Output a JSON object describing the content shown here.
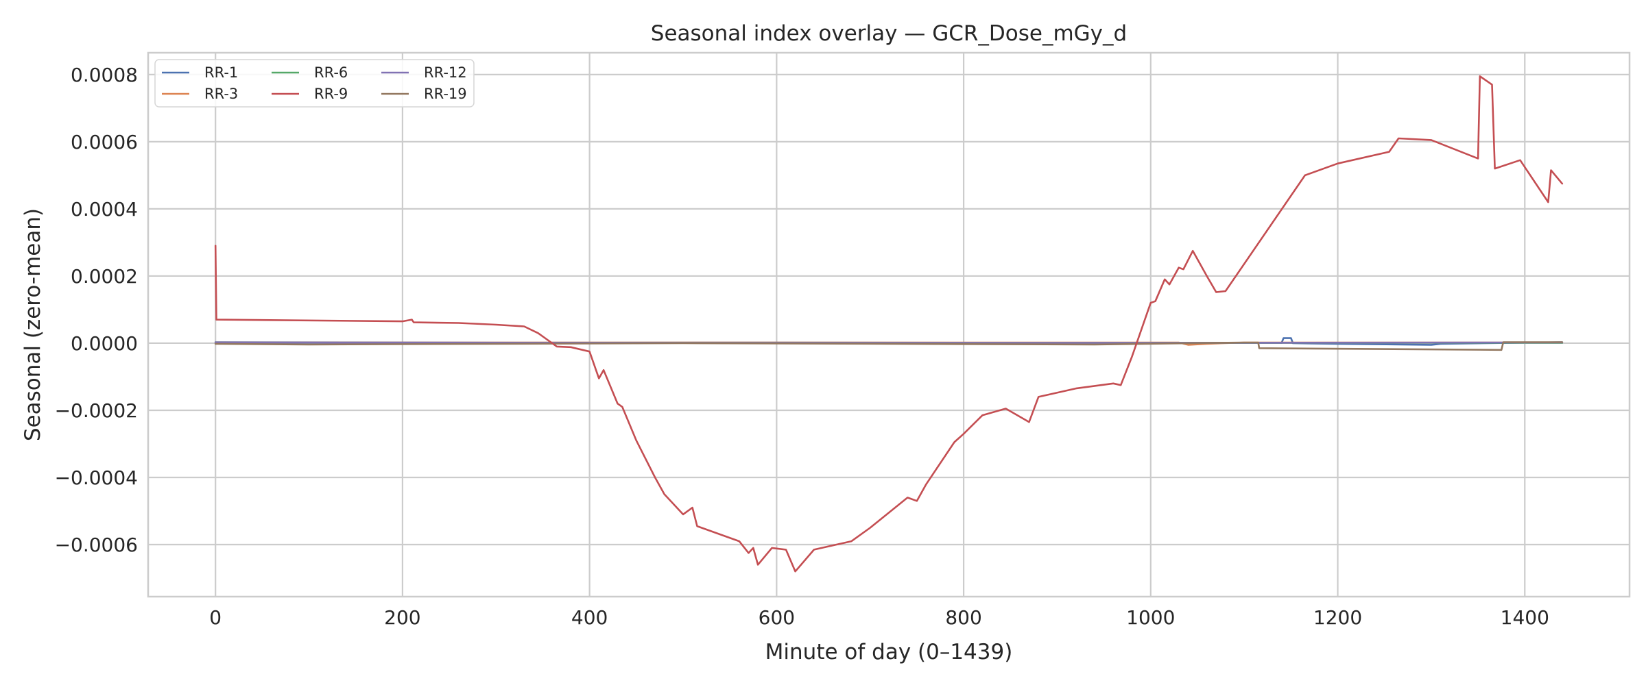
{
  "chart_data": {
    "type": "line",
    "title": "Seasonal index overlay — GCR_Dose_mGy_d",
    "xlabel": "Minute of day (0–1439)",
    "ylabel": "Seasonal (zero-mean)",
    "xlim": [
      -72,
      1512
    ],
    "ylim": [
      -0.000755,
      0.000865
    ],
    "x_ticks": [
      0,
      200,
      400,
      600,
      800,
      1000,
      1200,
      1400
    ],
    "x_tick_labels": [
      "0",
      "200",
      "400",
      "600",
      "800",
      "1000",
      "1200",
      "1400"
    ],
    "y_ticks": [
      -0.0006,
      -0.0004,
      -0.0002,
      0.0,
      0.0002,
      0.0004,
      0.0006,
      0.0008
    ],
    "y_tick_labels": [
      "−0.0006",
      "−0.0004",
      "−0.0002",
      "0.0000",
      "0.0002",
      "0.0004",
      "0.0006",
      "0.0008"
    ],
    "grid": true,
    "legend": {
      "placement": "top-left",
      "columns": 3
    },
    "series": [
      {
        "name": "RR-1",
        "color": "#4c72b0",
        "points": [
          [
            0,
            3e-06
          ],
          [
            300,
            1.5e-06
          ],
          [
            600,
            2e-06
          ],
          [
            900,
            1e-06
          ],
          [
            1140,
            1e-06
          ],
          [
            1142,
            1.5e-05
          ],
          [
            1150,
            1.5e-05
          ],
          [
            1152,
            0.0
          ],
          [
            1200,
            -2e-06
          ],
          [
            1300,
            -5e-06
          ],
          [
            1310,
            -2e-06
          ],
          [
            1440,
            3e-06
          ]
        ]
      },
      {
        "name": "RR-3",
        "color": "#dd8452",
        "points": [
          [
            0,
            2e-06
          ],
          [
            400,
            2e-06
          ],
          [
            800,
            2e-06
          ],
          [
            1030,
            2e-06
          ],
          [
            1040,
            -5e-06
          ],
          [
            1060,
            -2e-06
          ],
          [
            1100,
            2e-06
          ],
          [
            1440,
            2e-06
          ]
        ]
      },
      {
        "name": "RR-6",
        "color": "#55a868",
        "points": [
          [
            0,
            1e-06
          ],
          [
            500,
            1e-06
          ],
          [
            1000,
            1e-06
          ],
          [
            1440,
            1e-06
          ]
        ]
      },
      {
        "name": "RR-9",
        "color": "#c44e52",
        "points": [
          [
            0,
            0.00029
          ],
          [
            1,
            7e-05
          ],
          [
            200,
            6.5e-05
          ],
          [
            210,
            7e-05
          ],
          [
            212,
            6.2e-05
          ],
          [
            260,
            6e-05
          ],
          [
            300,
            5.5e-05
          ],
          [
            330,
            5e-05
          ],
          [
            345,
            3e-05
          ],
          [
            360,
            0.0
          ],
          [
            365,
            -1e-05
          ],
          [
            380,
            -1.2e-05
          ],
          [
            400,
            -2.5e-05
          ],
          [
            410,
            -0.000105
          ],
          [
            415,
            -8e-05
          ],
          [
            430,
            -0.00018
          ],
          [
            435,
            -0.00019
          ],
          [
            450,
            -0.00029
          ],
          [
            470,
            -0.0004
          ],
          [
            480,
            -0.00045
          ],
          [
            500,
            -0.00051
          ],
          [
            510,
            -0.00049
          ],
          [
            515,
            -0.000545
          ],
          [
            560,
            -0.00059
          ],
          [
            570,
            -0.000625
          ],
          [
            575,
            -0.00061
          ],
          [
            580,
            -0.00066
          ],
          [
            595,
            -0.00061
          ],
          [
            610,
            -0.000615
          ],
          [
            620,
            -0.00068
          ],
          [
            640,
            -0.000615
          ],
          [
            680,
            -0.00059
          ],
          [
            700,
            -0.00055
          ],
          [
            740,
            -0.00046
          ],
          [
            750,
            -0.00047
          ],
          [
            760,
            -0.00042
          ],
          [
            790,
            -0.000295
          ],
          [
            800,
            -0.00027
          ],
          [
            820,
            -0.000215
          ],
          [
            845,
            -0.000195
          ],
          [
            870,
            -0.000235
          ],
          [
            880,
            -0.00016
          ],
          [
            920,
            -0.000135
          ],
          [
            960,
            -0.00012
          ],
          [
            968,
            -0.000125
          ],
          [
            980,
            -4e-05
          ],
          [
            1000,
            0.00012
          ],
          [
            1005,
            0.000125
          ],
          [
            1015,
            0.00019
          ],
          [
            1020,
            0.000175
          ],
          [
            1030,
            0.000225
          ],
          [
            1035,
            0.00022
          ],
          [
            1045,
            0.000275
          ],
          [
            1060,
            0.0002
          ],
          [
            1070,
            0.000152
          ],
          [
            1080,
            0.000155
          ],
          [
            1165,
            0.0005
          ],
          [
            1200,
            0.000535
          ],
          [
            1255,
            0.00057
          ],
          [
            1265,
            0.00061
          ],
          [
            1300,
            0.000605
          ],
          [
            1350,
            0.00055
          ],
          [
            1352,
            0.000795
          ],
          [
            1365,
            0.00077
          ],
          [
            1368,
            0.00052
          ],
          [
            1395,
            0.000545
          ],
          [
            1425,
            0.00042
          ],
          [
            1428,
            0.000515
          ],
          [
            1440,
            0.000475
          ]
        ]
      },
      {
        "name": "RR-12",
        "color": "#8172b3",
        "points": [
          [
            0,
            2e-06
          ],
          [
            500,
            1e-06
          ],
          [
            1000,
            1e-06
          ],
          [
            1440,
            2e-06
          ]
        ]
      },
      {
        "name": "RR-19",
        "color": "#937860",
        "points": [
          [
            0,
            -2e-06
          ],
          [
            100,
            -4e-06
          ],
          [
            500,
            0.0
          ],
          [
            940,
            -4e-06
          ],
          [
            1100,
            2e-06
          ],
          [
            1115,
            2e-06
          ],
          [
            1116,
            -1.5e-05
          ],
          [
            1375,
            -2e-05
          ],
          [
            1377,
            3e-06
          ],
          [
            1440,
            3e-06
          ]
        ]
      }
    ]
  }
}
